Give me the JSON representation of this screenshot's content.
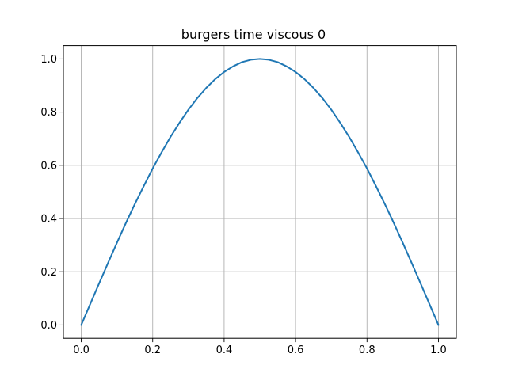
{
  "chart_data": {
    "type": "line",
    "title": "burgers time viscous 0",
    "xlabel": "",
    "ylabel": "",
    "xlim": [
      -0.05,
      1.05
    ],
    "ylim": [
      -0.05,
      1.05
    ],
    "xticks": [
      0.0,
      0.2,
      0.4,
      0.6,
      0.8,
      1.0
    ],
    "xtick_labels": [
      "0.0",
      "0.2",
      "0.4",
      "0.6",
      "0.8",
      "1.0"
    ],
    "yticks": [
      0.0,
      0.2,
      0.4,
      0.6,
      0.8,
      1.0
    ],
    "ytick_labels": [
      "0.0",
      "0.2",
      "0.4",
      "0.6",
      "0.8",
      "1.0"
    ],
    "grid": true,
    "legend": "none",
    "series": [
      {
        "color": "#1f77b4",
        "x": [
          0.0,
          0.025,
          0.05,
          0.075,
          0.1,
          0.125,
          0.15,
          0.175,
          0.2,
          0.225,
          0.25,
          0.275,
          0.3,
          0.325,
          0.35,
          0.375,
          0.4,
          0.425,
          0.45,
          0.475,
          0.5,
          0.525,
          0.55,
          0.575,
          0.6,
          0.625,
          0.65,
          0.675,
          0.7,
          0.725,
          0.75,
          0.775,
          0.8,
          0.825,
          0.85,
          0.875,
          0.9,
          0.925,
          0.95,
          0.975,
          1.0
        ],
        "y": [
          0.0,
          0.078,
          0.156,
          0.233,
          0.309,
          0.383,
          0.454,
          0.522,
          0.588,
          0.649,
          0.707,
          0.76,
          0.809,
          0.853,
          0.891,
          0.924,
          0.951,
          0.972,
          0.988,
          0.997,
          1.0,
          0.997,
          0.988,
          0.972,
          0.951,
          0.924,
          0.891,
          0.853,
          0.809,
          0.76,
          0.707,
          0.649,
          0.588,
          0.522,
          0.454,
          0.383,
          0.309,
          0.233,
          0.156,
          0.078,
          0.0
        ]
      }
    ]
  }
}
